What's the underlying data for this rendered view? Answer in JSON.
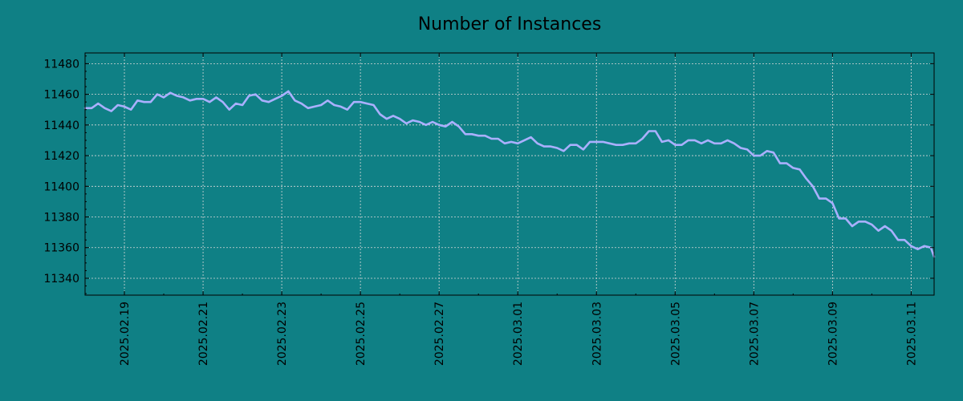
{
  "chart_data": {
    "type": "line",
    "title": "Number of Instances",
    "xlabel": "",
    "ylabel": "",
    "xlim": [
      "2025-02-18",
      "2025-03-11T14:00"
    ],
    "ylim": [
      11329,
      11487
    ],
    "grid": true,
    "legend": "none",
    "x_ticks": [
      "2025.02.19",
      "2025.02.21",
      "2025.02.23",
      "2025.02.25",
      "2025.02.27",
      "2025.03.01",
      "2025.03.03",
      "2025.03.05",
      "2025.03.07",
      "2025.03.09",
      "2025.03.11"
    ],
    "y_ticks": [
      11340,
      11360,
      11380,
      11400,
      11420,
      11440,
      11460,
      11480
    ],
    "series": [
      {
        "color": "#aab0ff",
        "points": [
          [
            "2025-02-18T00:00",
            11451
          ],
          [
            "2025-02-18T04:00",
            11451
          ],
          [
            "2025-02-18T08:00",
            11454
          ],
          [
            "2025-02-18T12:00",
            11451
          ],
          [
            "2025-02-18T16:00",
            11449
          ],
          [
            "2025-02-18T20:00",
            11453
          ],
          [
            "2025-02-19T00:00",
            11452
          ],
          [
            "2025-02-19T04:00",
            11450
          ],
          [
            "2025-02-19T08:00",
            11456
          ],
          [
            "2025-02-19T12:00",
            11455
          ],
          [
            "2025-02-19T16:00",
            11455
          ],
          [
            "2025-02-19T20:00",
            11460
          ],
          [
            "2025-02-20T00:00",
            11458
          ],
          [
            "2025-02-20T04:00",
            11461
          ],
          [
            "2025-02-20T08:00",
            11459
          ],
          [
            "2025-02-20T12:00",
            11458
          ],
          [
            "2025-02-20T16:00",
            11456
          ],
          [
            "2025-02-20T20:00",
            11457
          ],
          [
            "2025-02-21T00:00",
            11457
          ],
          [
            "2025-02-21T04:00",
            11455
          ],
          [
            "2025-02-21T08:00",
            11458
          ],
          [
            "2025-02-21T12:00",
            11455
          ],
          [
            "2025-02-21T16:00",
            11450
          ],
          [
            "2025-02-21T20:00",
            11454
          ],
          [
            "2025-02-22T00:00",
            11453
          ],
          [
            "2025-02-22T04:00",
            11459
          ],
          [
            "2025-02-22T08:00",
            11460
          ],
          [
            "2025-02-22T12:00",
            11456
          ],
          [
            "2025-02-22T16:00",
            11455
          ],
          [
            "2025-02-22T20:00",
            11457
          ],
          [
            "2025-02-23T00:00",
            11459
          ],
          [
            "2025-02-23T04:00",
            11462
          ],
          [
            "2025-02-23T08:00",
            11456
          ],
          [
            "2025-02-23T12:00",
            11454
          ],
          [
            "2025-02-23T16:00",
            11451
          ],
          [
            "2025-02-23T20:00",
            11452
          ],
          [
            "2025-02-24T00:00",
            11453
          ],
          [
            "2025-02-24T04:00",
            11456
          ],
          [
            "2025-02-24T08:00",
            11453
          ],
          [
            "2025-02-24T12:00",
            11452
          ],
          [
            "2025-02-24T16:00",
            11450
          ],
          [
            "2025-02-24T20:00",
            11455
          ],
          [
            "2025-02-25T00:00",
            11455
          ],
          [
            "2025-02-25T04:00",
            11454
          ],
          [
            "2025-02-25T08:00",
            11453
          ],
          [
            "2025-02-25T12:00",
            11447
          ],
          [
            "2025-02-25T16:00",
            11444
          ],
          [
            "2025-02-25T20:00",
            11446
          ],
          [
            "2025-02-26T00:00",
            11444
          ],
          [
            "2025-02-26T04:00",
            11441
          ],
          [
            "2025-02-26T08:00",
            11443
          ],
          [
            "2025-02-26T12:00",
            11442
          ],
          [
            "2025-02-26T16:00",
            11440
          ],
          [
            "2025-02-26T20:00",
            11442
          ],
          [
            "2025-02-27T00:00",
            11440
          ],
          [
            "2025-02-27T04:00",
            11439
          ],
          [
            "2025-02-27T08:00",
            11442
          ],
          [
            "2025-02-27T12:00",
            11439
          ],
          [
            "2025-02-27T16:00",
            11434
          ],
          [
            "2025-02-27T20:00",
            11434
          ],
          [
            "2025-02-28T00:00",
            11433
          ],
          [
            "2025-02-28T04:00",
            11433
          ],
          [
            "2025-02-28T08:00",
            11431
          ],
          [
            "2025-02-28T12:00",
            11431
          ],
          [
            "2025-02-28T16:00",
            11428
          ],
          [
            "2025-02-28T20:00",
            11429
          ],
          [
            "2025-03-01T00:00",
            11428
          ],
          [
            "2025-03-01T04:00",
            11430
          ],
          [
            "2025-03-01T08:00",
            11432
          ],
          [
            "2025-03-01T12:00",
            11428
          ],
          [
            "2025-03-01T16:00",
            11426
          ],
          [
            "2025-03-01T20:00",
            11426
          ],
          [
            "2025-03-02T00:00",
            11425
          ],
          [
            "2025-03-02T04:00",
            11423
          ],
          [
            "2025-03-02T08:00",
            11427
          ],
          [
            "2025-03-02T12:00",
            11427
          ],
          [
            "2025-03-02T16:00",
            11424
          ],
          [
            "2025-03-02T20:00",
            11429
          ],
          [
            "2025-03-03T00:00",
            11429
          ],
          [
            "2025-03-03T04:00",
            11429
          ],
          [
            "2025-03-03T08:00",
            11428
          ],
          [
            "2025-03-03T12:00",
            11427
          ],
          [
            "2025-03-03T16:00",
            11427
          ],
          [
            "2025-03-03T20:00",
            11428
          ],
          [
            "2025-03-04T00:00",
            11428
          ],
          [
            "2025-03-04T04:00",
            11431
          ],
          [
            "2025-03-04T08:00",
            11436
          ],
          [
            "2025-03-04T12:00",
            11436
          ],
          [
            "2025-03-04T16:00",
            11429
          ],
          [
            "2025-03-04T20:00",
            11430
          ],
          [
            "2025-03-05T00:00",
            11427
          ],
          [
            "2025-03-05T04:00",
            11427
          ],
          [
            "2025-03-05T08:00",
            11430
          ],
          [
            "2025-03-05T12:00",
            11430
          ],
          [
            "2025-03-05T16:00",
            11428
          ],
          [
            "2025-03-05T20:00",
            11430
          ],
          [
            "2025-03-06T00:00",
            11428
          ],
          [
            "2025-03-06T04:00",
            11428
          ],
          [
            "2025-03-06T08:00",
            11430
          ],
          [
            "2025-03-06T12:00",
            11428
          ],
          [
            "2025-03-06T16:00",
            11425
          ],
          [
            "2025-03-06T20:00",
            11424
          ],
          [
            "2025-03-07T00:00",
            11420
          ],
          [
            "2025-03-07T04:00",
            11420
          ],
          [
            "2025-03-07T08:00",
            11423
          ],
          [
            "2025-03-07T12:00",
            11422
          ],
          [
            "2025-03-07T16:00",
            11415
          ],
          [
            "2025-03-07T20:00",
            11415
          ],
          [
            "2025-03-08T00:00",
            11412
          ],
          [
            "2025-03-08T04:00",
            11411
          ],
          [
            "2025-03-08T08:00",
            11405
          ],
          [
            "2025-03-08T12:00",
            11400
          ],
          [
            "2025-03-08T16:00",
            11392
          ],
          [
            "2025-03-08T20:00",
            11392
          ],
          [
            "2025-03-09T00:00",
            11389
          ],
          [
            "2025-03-09T04:00",
            11379
          ],
          [
            "2025-03-09T08:00",
            11379
          ],
          [
            "2025-03-09T12:00",
            11374
          ],
          [
            "2025-03-09T16:00",
            11377
          ],
          [
            "2025-03-09T20:00",
            11377
          ],
          [
            "2025-03-10T00:00",
            11375
          ],
          [
            "2025-03-10T04:00",
            11371
          ],
          [
            "2025-03-10T08:00",
            11374
          ],
          [
            "2025-03-10T12:00",
            11371
          ],
          [
            "2025-03-10T16:00",
            11365
          ],
          [
            "2025-03-10T20:00",
            11365
          ],
          [
            "2025-03-11T00:00",
            11361
          ],
          [
            "2025-03-11T04:00",
            11359
          ],
          [
            "2025-03-11T08:00",
            11361
          ],
          [
            "2025-03-11T12:00",
            11360
          ],
          [
            "2025-03-11T14:00",
            11354
          ]
        ]
      }
    ]
  }
}
